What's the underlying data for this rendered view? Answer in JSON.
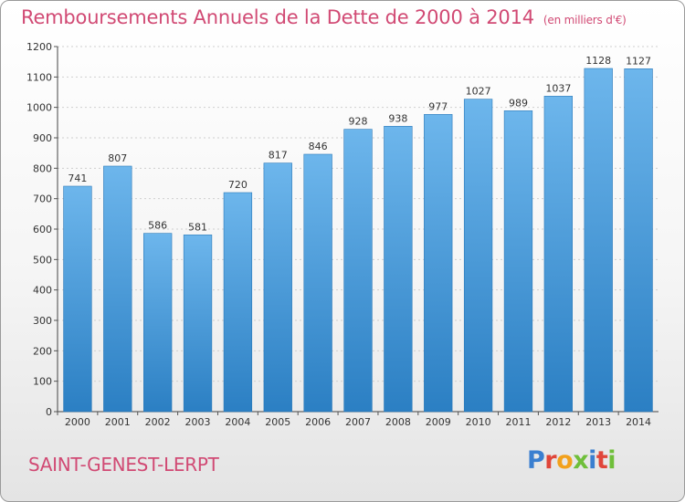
{
  "header": {
    "title": "Remboursements Annuels de la Dette de 2000 à 2014",
    "unit": "(en milliers d'€)"
  },
  "footer": {
    "city": "SAINT-GENEST-LERPT",
    "logo": "Proxiti"
  },
  "colors": {
    "accent": "#d14a74",
    "bar_light": "#6db6ec",
    "bar_dark": "#2b7fc3"
  },
  "chart_data": {
    "type": "bar",
    "title": "Remboursements Annuels de la Dette de 2000 à 2014",
    "categories": [
      "2000",
      "2001",
      "2002",
      "2003",
      "2004",
      "2005",
      "2006",
      "2007",
      "2008",
      "2009",
      "2010",
      "2011",
      "2012",
      "2013",
      "2014"
    ],
    "values": [
      741,
      807,
      586,
      581,
      720,
      817,
      846,
      928,
      938,
      977,
      1027,
      989,
      1037,
      1128,
      1127
    ],
    "ylim": [
      0,
      1200
    ],
    "yticks": [
      0,
      100,
      200,
      300,
      400,
      500,
      600,
      700,
      800,
      900,
      1000,
      1100,
      1200
    ],
    "grid": true,
    "xlabel": "",
    "ylabel": ""
  }
}
